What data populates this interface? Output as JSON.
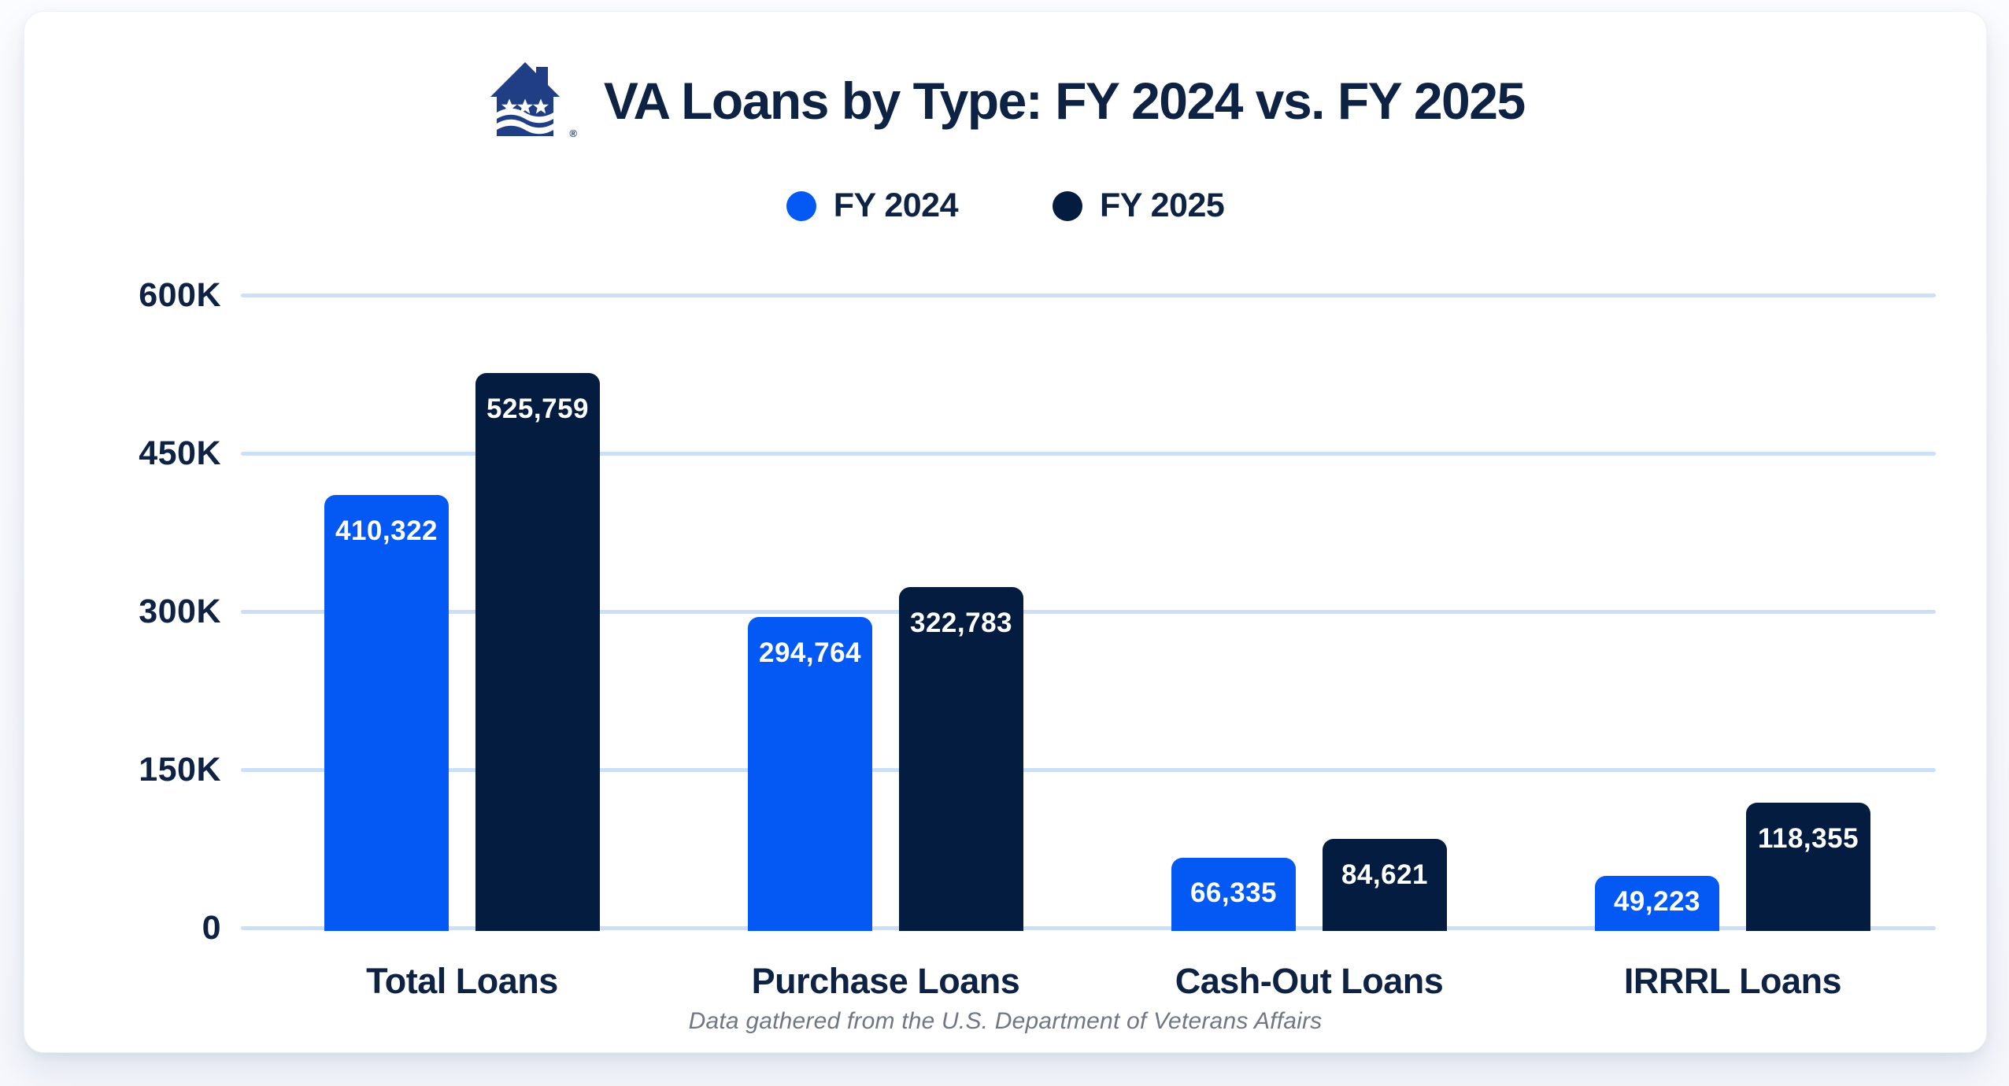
{
  "header": {
    "title": "VA Loans by Type: FY 2024 vs. FY 2025",
    "logo_name": "veterans-united-house-logo",
    "logo_mark": "®"
  },
  "legend": {
    "items": [
      {
        "label": "FY 2024",
        "color": "#0459F5"
      },
      {
        "label": "FY 2025",
        "color": "#041C3F"
      }
    ]
  },
  "footer": {
    "source_note": "Data gathered from the U.S. Department of Veterans Affairs"
  },
  "colors": {
    "text_navy": "#0E2244",
    "bar_blue": "#0459F5",
    "bar_navy": "#041C3F",
    "gridline": "#CBDFF7",
    "value_label": "#FFFFFF",
    "footer_gray": "#6F7785",
    "logo_navy": "#1F3E85",
    "card_bg": "#FFFFFF"
  },
  "chart_data": {
    "type": "bar",
    "title": "VA Loans by Type: FY 2024 vs. FY 2025",
    "categories": [
      "Total Loans",
      "Purchase Loans",
      "Cash-Out Loans",
      "IRRRL Loans"
    ],
    "series": [
      {
        "name": "FY 2024",
        "color": "#0459F5",
        "values": [
          410322,
          294764,
          66335,
          49223
        ]
      },
      {
        "name": "FY 2025",
        "color": "#041C3F",
        "values": [
          525759,
          322783,
          84621,
          118355
        ]
      }
    ],
    "value_labels": [
      [
        "410,322",
        "294,764",
        "66,335",
        "49,223"
      ],
      [
        "525,759",
        "322,783",
        "84,621",
        "118,355"
      ]
    ],
    "y_ticks": [
      {
        "label": "0",
        "value": 0
      },
      {
        "label": "150K",
        "value": 150000
      },
      {
        "label": "300K",
        "value": 300000
      },
      {
        "label": "450K",
        "value": 450000
      },
      {
        "label": "600K",
        "value": 600000
      }
    ],
    "ylim": [
      0,
      600000
    ],
    "grid": "horizontal-only",
    "legend_position": "top-center",
    "source_note": "Data gathered from the U.S. Department of Veterans Affairs"
  }
}
